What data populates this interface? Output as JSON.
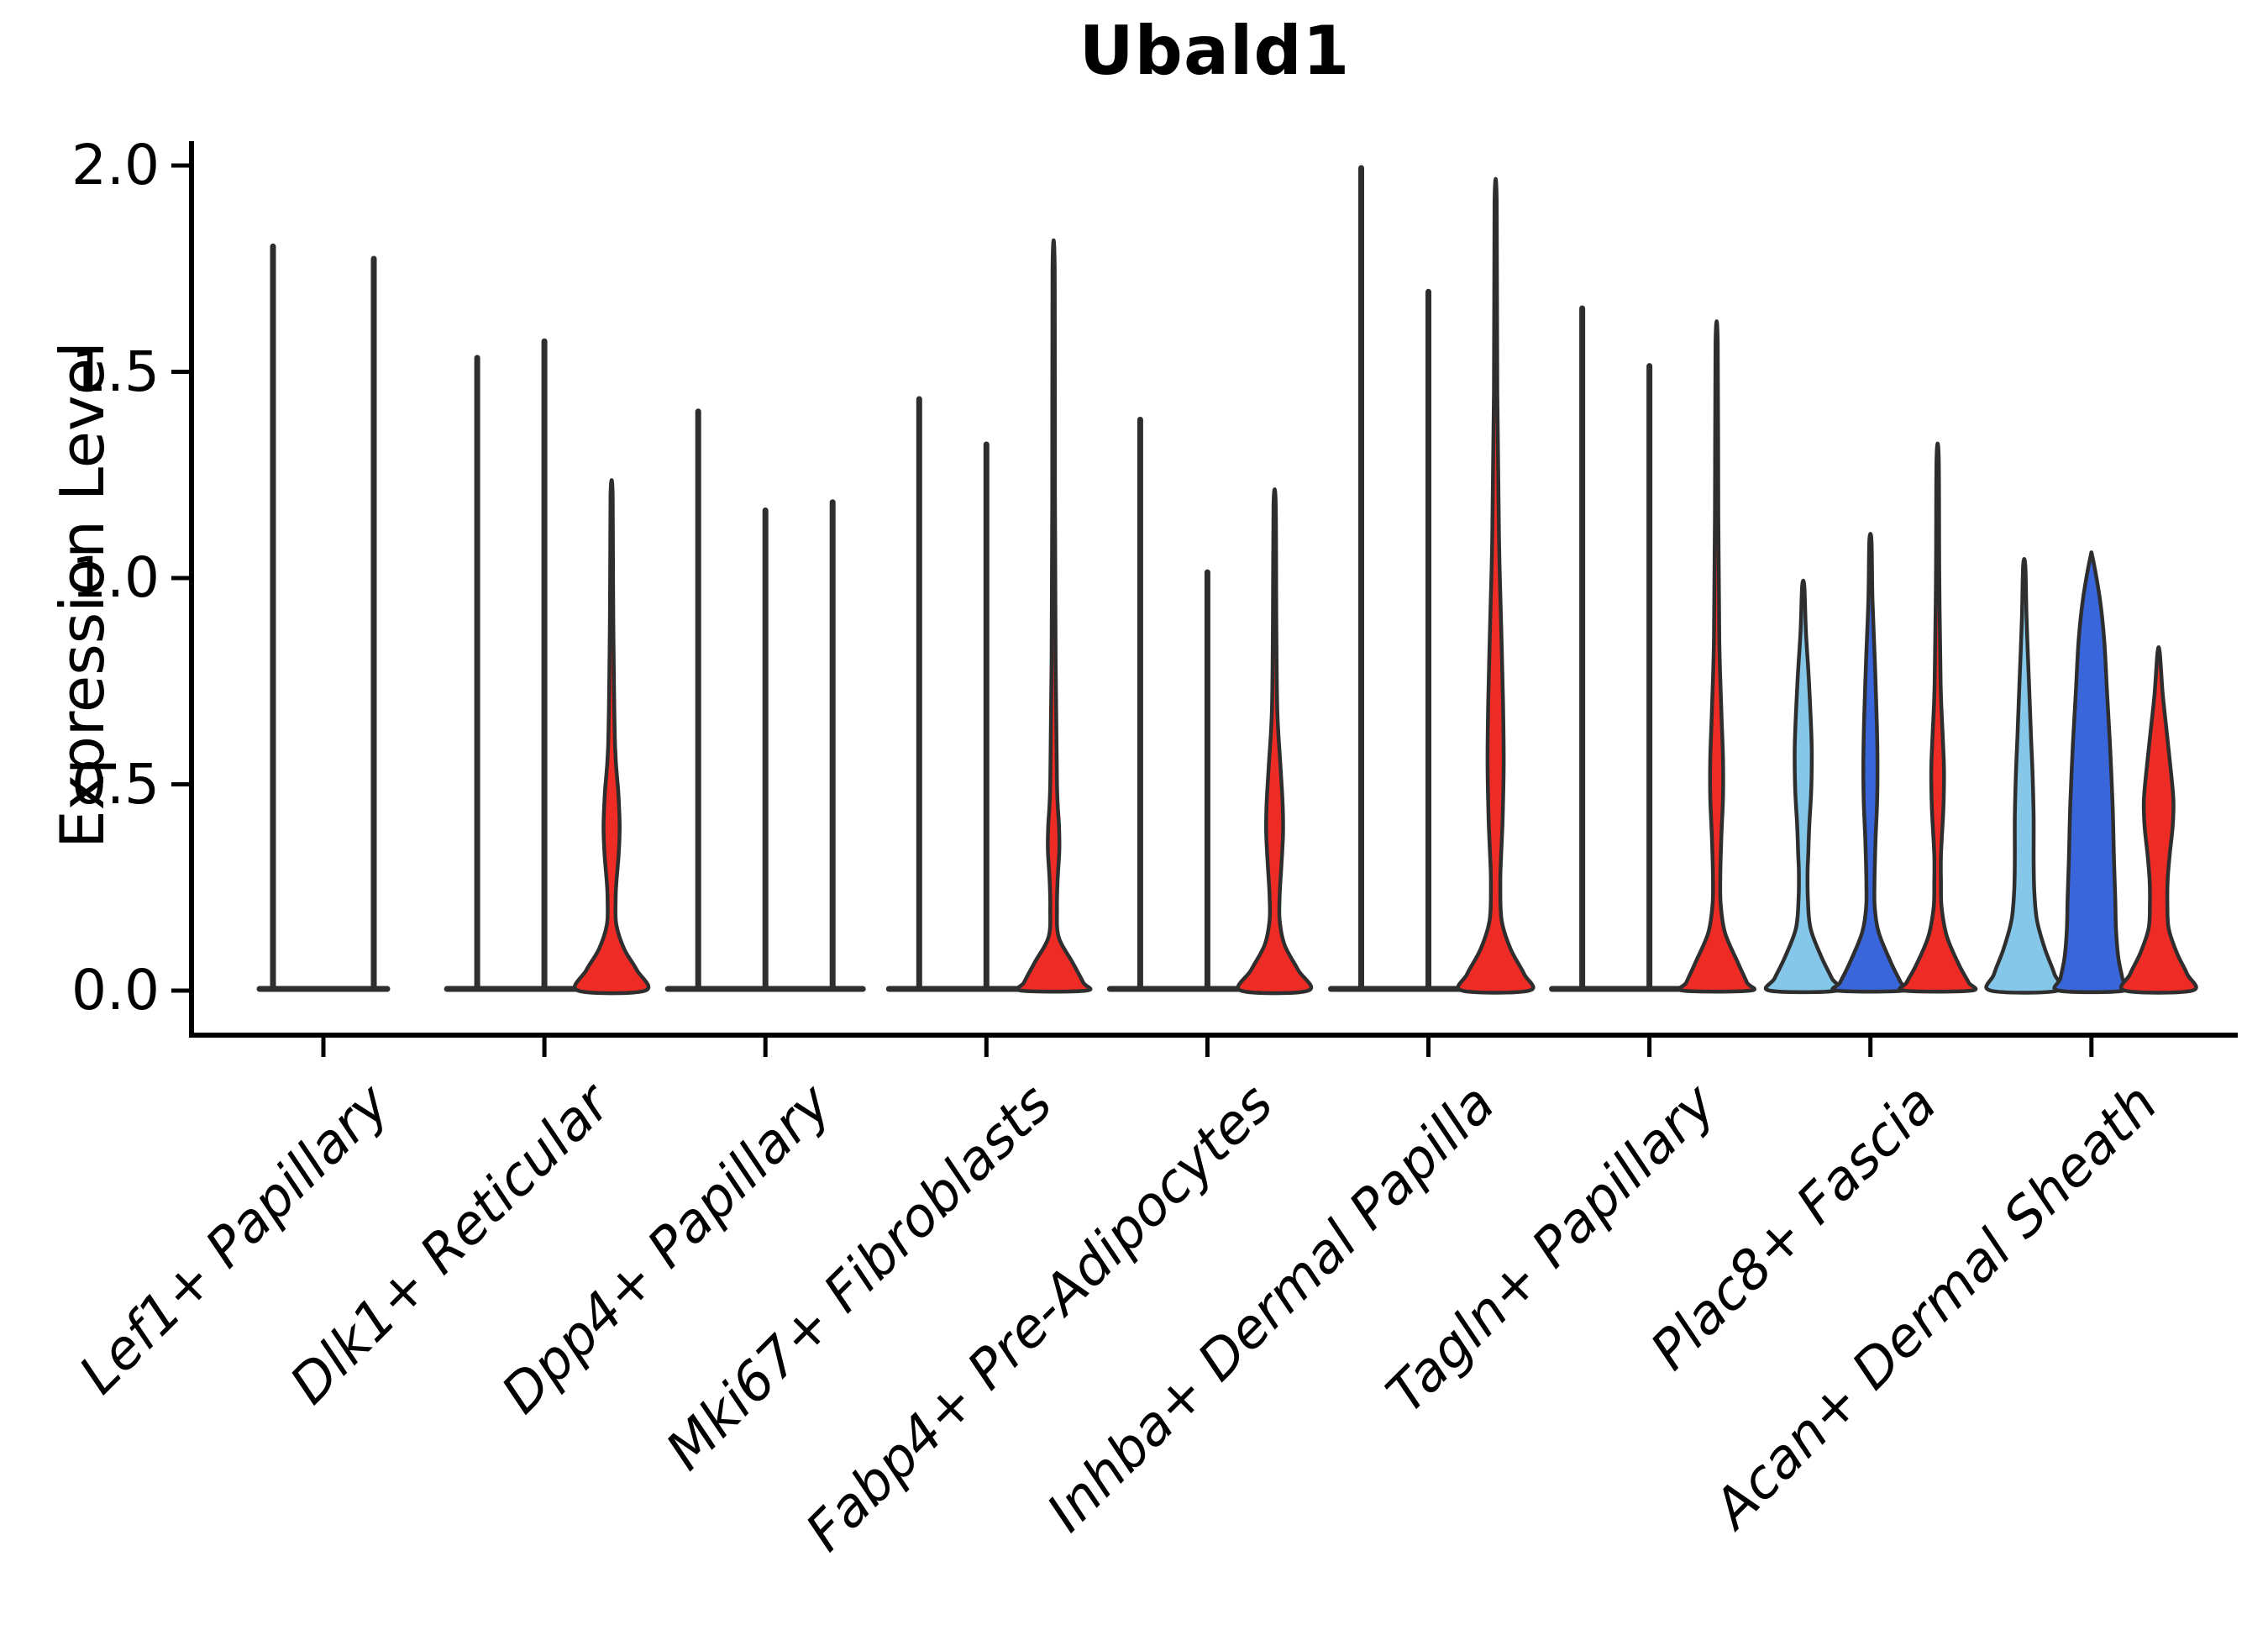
{
  "chart_data": {
    "type": "violin",
    "title": "Ubald1",
    "ylabel": "Expression Level",
    "ylim": [
      0,
      2.05
    ],
    "yticks": [
      "0.0",
      "0.5",
      "1.0",
      "1.5",
      "2.0"
    ],
    "ytick_values": [
      0.0,
      0.5,
      1.0,
      1.5,
      2.0
    ],
    "grid": false,
    "legend": "none",
    "categories": [
      "Lef1+ Papillary",
      "Dlk1+ Reticular",
      "Dpp4+ Papillary",
      "Mki67+ Fibroblasts",
      "Fabp4+ Pre-Adipocytes",
      "Inhba+ Dermal Papilla",
      "Tagln+ Papillary",
      "Plac8+ Fascia",
      "Acan+ Dermal Sheath"
    ],
    "palette": {
      "lightblue": "#85C7E8",
      "darkblue": "#3A66DB",
      "red": "#EE2B24",
      "outline": "#2E2E2E",
      "axis": "#000000"
    },
    "groups": [
      {
        "category": "Lef1+ Papillary",
        "violins": [
          {
            "color": "lightblue",
            "max_expression": 1.81,
            "profile": null
          },
          {
            "color": "darkblue",
            "max_expression": 1.78,
            "profile": null
          }
        ]
      },
      {
        "category": "Dlk1+ Reticular",
        "violins": [
          {
            "color": "lightblue",
            "max_expression": 1.54,
            "profile": null
          },
          {
            "color": "darkblue",
            "max_expression": 1.58,
            "profile": null
          },
          {
            "color": "red",
            "max_expression": 1.2,
            "profile": [
              [
                1.2,
                0.03
              ],
              [
                0.9,
                0.05
              ],
              [
                0.6,
                0.1
              ],
              [
                0.48,
                0.2
              ],
              [
                0.4,
                0.24
              ],
              [
                0.33,
                0.21
              ],
              [
                0.26,
                0.14
              ],
              [
                0.22,
                0.12
              ],
              [
                0.16,
                0.14
              ],
              [
                0.1,
                0.38
              ],
              [
                0.05,
                0.75
              ],
              [
                0.0,
                1.0
              ]
            ]
          }
        ]
      },
      {
        "category": "Dpp4+ Papillary",
        "violins": [
          {
            "color": "lightblue",
            "max_expression": 1.41,
            "profile": null
          },
          {
            "color": "darkblue",
            "max_expression": 1.17,
            "profile": null
          },
          {
            "color": "red",
            "max_expression": 1.19,
            "profile": null
          }
        ]
      },
      {
        "category": "Mki67+ Fibroblasts",
        "violins": [
          {
            "color": "lightblue",
            "max_expression": 1.44,
            "profile": null
          },
          {
            "color": "darkblue",
            "max_expression": 1.33,
            "profile": null
          },
          {
            "color": "red",
            "max_expression": 1.75,
            "profile": [
              [
                1.75,
                0.03
              ],
              [
                1.2,
                0.04
              ],
              [
                0.8,
                0.06
              ],
              [
                0.5,
                0.1
              ],
              [
                0.4,
                0.16
              ],
              [
                0.34,
                0.17
              ],
              [
                0.27,
                0.12
              ],
              [
                0.2,
                0.1
              ],
              [
                0.13,
                0.15
              ],
              [
                0.07,
                0.55
              ],
              [
                0.02,
                0.88
              ],
              [
                0.0,
                0.97
              ]
            ]
          }
        ]
      },
      {
        "category": "Fabp4+ Pre-Adipocytes",
        "violins": [
          {
            "color": "lightblue",
            "max_expression": 1.39,
            "profile": null
          },
          {
            "color": "darkblue",
            "max_expression": 1.02,
            "profile": null
          },
          {
            "color": "red",
            "max_expression": 1.18,
            "profile": [
              [
                1.18,
                0.03
              ],
              [
                0.9,
                0.05
              ],
              [
                0.68,
                0.08
              ],
              [
                0.55,
                0.17
              ],
              [
                0.45,
                0.24
              ],
              [
                0.38,
                0.25
              ],
              [
                0.3,
                0.2
              ],
              [
                0.23,
                0.15
              ],
              [
                0.17,
                0.15
              ],
              [
                0.11,
                0.3
              ],
              [
                0.05,
                0.7
              ],
              [
                0.0,
                1.0
              ]
            ]
          }
        ]
      },
      {
        "category": "Inhba+ Dermal Papilla",
        "violins": [
          {
            "color": "lightblue",
            "max_expression": 2.0,
            "profile": null
          },
          {
            "color": "darkblue",
            "max_expression": 1.7,
            "profile": null
          },
          {
            "color": "red",
            "max_expression": 1.91,
            "profile": [
              [
                1.91,
                0.03
              ],
              [
                1.45,
                0.05
              ],
              [
                1.1,
                0.1
              ],
              [
                0.9,
                0.16
              ],
              [
                0.7,
                0.22
              ],
              [
                0.55,
                0.24
              ],
              [
                0.42,
                0.21
              ],
              [
                0.32,
                0.16
              ],
              [
                0.26,
                0.14
              ],
              [
                0.17,
                0.18
              ],
              [
                0.1,
                0.45
              ],
              [
                0.04,
                0.85
              ],
              [
                0.0,
                1.0
              ]
            ]
          }
        ]
      },
      {
        "category": "Tagln+ Papillary",
        "violins": [
          {
            "color": "lightblue",
            "max_expression": 1.66,
            "profile": null
          },
          {
            "color": "darkblue",
            "max_expression": 1.52,
            "profile": null
          },
          {
            "color": "red",
            "max_expression": 1.57,
            "profile": [
              [
                1.57,
                0.03
              ],
              [
                1.15,
                0.05
              ],
              [
                0.85,
                0.08
              ],
              [
                0.68,
                0.14
              ],
              [
                0.56,
                0.19
              ],
              [
                0.47,
                0.19
              ],
              [
                0.37,
                0.14
              ],
              [
                0.28,
                0.11
              ],
              [
                0.21,
                0.12
              ],
              [
                0.14,
                0.25
              ],
              [
                0.07,
                0.62
              ],
              [
                0.02,
                0.9
              ],
              [
                0.0,
                1.0
              ]
            ]
          }
        ]
      },
      {
        "category": "Plac8+ Fascia",
        "violins": [
          {
            "color": "lightblue",
            "max_expression": 0.98,
            "profile": [
              [
                0.98,
                0.03
              ],
              [
                0.87,
                0.08
              ],
              [
                0.75,
                0.17
              ],
              [
                0.6,
                0.25
              ],
              [
                0.49,
                0.24
              ],
              [
                0.4,
                0.18
              ],
              [
                0.33,
                0.15
              ],
              [
                0.29,
                0.13
              ],
              [
                0.22,
                0.14
              ],
              [
                0.15,
                0.22
              ],
              [
                0.08,
                0.55
              ],
              [
                0.03,
                0.85
              ],
              [
                0.0,
                1.0
              ]
            ]
          },
          {
            "color": "darkblue",
            "max_expression": 1.09,
            "profile": [
              [
                1.09,
                0.03
              ],
              [
                0.95,
                0.06
              ],
              [
                0.8,
                0.13
              ],
              [
                0.65,
                0.19
              ],
              [
                0.56,
                0.21
              ],
              [
                0.46,
                0.2
              ],
              [
                0.36,
                0.15
              ],
              [
                0.26,
                0.12
              ],
              [
                0.2,
                0.13
              ],
              [
                0.14,
                0.25
              ],
              [
                0.07,
                0.6
              ],
              [
                0.02,
                0.9
              ],
              [
                0.0,
                1.0
              ]
            ]
          },
          {
            "color": "red",
            "max_expression": 1.29,
            "profile": [
              [
                1.29,
                0.03
              ],
              [
                1.0,
                0.05
              ],
              [
                0.74,
                0.09
              ],
              [
                0.62,
                0.15
              ],
              [
                0.53,
                0.19
              ],
              [
                0.44,
                0.17
              ],
              [
                0.33,
                0.1
              ],
              [
                0.26,
                0.1
              ],
              [
                0.2,
                0.12
              ],
              [
                0.13,
                0.28
              ],
              [
                0.06,
                0.65
              ],
              [
                0.02,
                0.92
              ],
              [
                0.0,
                1.0
              ]
            ]
          }
        ]
      },
      {
        "category": "Acan+ Dermal Sheath",
        "violins": [
          {
            "color": "lightblue",
            "max_expression": 1.03,
            "profile": [
              [
                1.03,
                0.03
              ],
              [
                0.9,
                0.07
              ],
              [
                0.75,
                0.14
              ],
              [
                0.62,
                0.2
              ],
              [
                0.52,
                0.25
              ],
              [
                0.42,
                0.28
              ],
              [
                0.32,
                0.28
              ],
              [
                0.24,
                0.3
              ],
              [
                0.17,
                0.38
              ],
              [
                0.1,
                0.62
              ],
              [
                0.04,
                0.9
              ],
              [
                0.0,
                1.0
              ]
            ]
          },
          {
            "color": "darkblue",
            "max_expression": 1.05,
            "profile": [
              [
                1.05,
                0.03
              ],
              [
                0.95,
                0.25
              ],
              [
                0.85,
                0.38
              ],
              [
                0.73,
                0.46
              ],
              [
                0.6,
                0.55
              ],
              [
                0.45,
                0.63
              ],
              [
                0.32,
                0.67
              ],
              [
                0.22,
                0.71
              ],
              [
                0.15,
                0.73
              ],
              [
                0.08,
                0.8
              ],
              [
                0.03,
                0.92
              ],
              [
                0.0,
                0.97
              ]
            ]
          },
          {
            "color": "red",
            "max_expression": 0.82,
            "profile": [
              [
                0.82,
                0.03
              ],
              [
                0.72,
                0.12
              ],
              [
                0.62,
                0.25
              ],
              [
                0.52,
                0.38
              ],
              [
                0.46,
                0.44
              ],
              [
                0.4,
                0.42
              ],
              [
                0.33,
                0.33
              ],
              [
                0.27,
                0.27
              ],
              [
                0.21,
                0.26
              ],
              [
                0.15,
                0.3
              ],
              [
                0.09,
                0.55
              ],
              [
                0.04,
                0.85
              ],
              [
                0.0,
                1.0
              ]
            ]
          }
        ]
      }
    ]
  }
}
